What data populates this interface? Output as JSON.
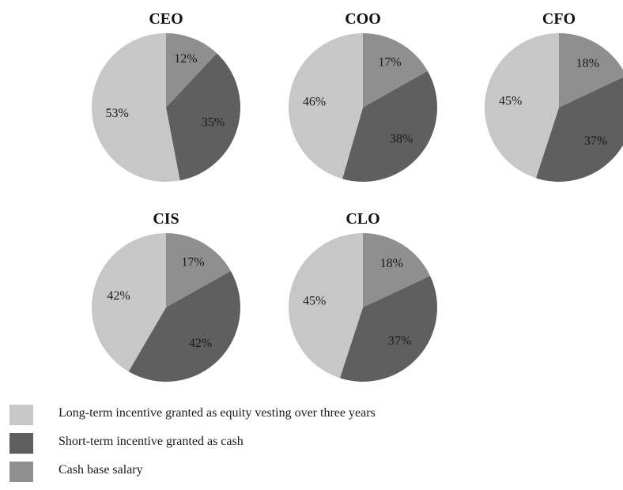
{
  "chart_data": {
    "type": "pie",
    "colors": {
      "long_term": "#c7c7c7",
      "short_term": "#5f5f5f",
      "cash_base": "#8f8f8f"
    },
    "categories": [
      "Long-term incentive granted as equity vesting over three years",
      "Short-term incentive granted as cash",
      "Cash base salary"
    ],
    "pies": [
      {
        "title": "CEO",
        "cash_base": 12,
        "short_term": 35,
        "long_term": 53,
        "labels": {
          "cash_base": "12%",
          "short_term": "35%",
          "long_term": "53%"
        }
      },
      {
        "title": "COO",
        "cash_base": 17,
        "short_term": 38,
        "long_term": 46,
        "labels": {
          "cash_base": "17%",
          "short_term": "38%",
          "long_term": "46%"
        }
      },
      {
        "title": "CFO",
        "cash_base": 18,
        "short_term": 37,
        "long_term": 45,
        "labels": {
          "cash_base": "18%",
          "short_term": "37%",
          "long_term": "45%"
        }
      },
      {
        "title": "CIS",
        "cash_base": 17,
        "short_term": 42,
        "long_term": 42,
        "labels": {
          "cash_base": "17%",
          "short_term": "42%",
          "long_term": "42%"
        }
      },
      {
        "title": "CLO",
        "cash_base": 18,
        "short_term": 37,
        "long_term": 45,
        "labels": {
          "cash_base": "18%",
          "short_term": "37%",
          "long_term": "45%"
        }
      }
    ]
  },
  "legend": {
    "items": [
      {
        "key": "long_term",
        "label": "Long-term incentive granted as equity vesting over three years"
      },
      {
        "key": "short_term",
        "label": "Short-term incentive granted as cash"
      },
      {
        "key": "cash_base",
        "label": "Cash base salary"
      }
    ]
  }
}
